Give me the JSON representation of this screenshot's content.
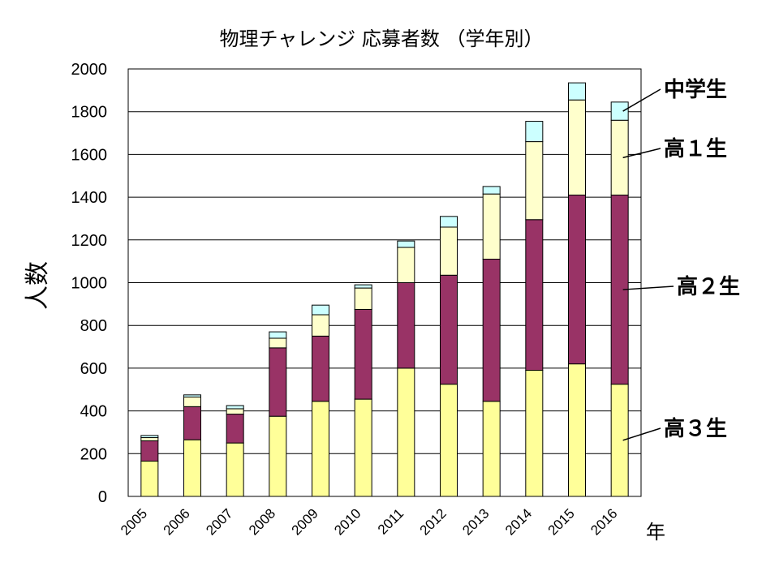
{
  "chart_data": {
    "type": "bar",
    "stacked": true,
    "title": "物理チャレンジ 応募者数 （学年別）",
    "ylabel": "人数",
    "xunit": "年",
    "ylim": [
      0,
      2000
    ],
    "yticks": [
      0,
      200,
      400,
      600,
      800,
      1000,
      1200,
      1400,
      1600,
      1800,
      2000
    ],
    "grid": true,
    "categories": [
      "2005",
      "2006",
      "2007",
      "2008",
      "2009",
      "2010",
      "2011",
      "2012",
      "2013",
      "2014",
      "2015",
      "2016"
    ],
    "series": [
      {
        "name": "高３生",
        "color": "#FFFF99",
        "values": [
          165,
          265,
          250,
          375,
          445,
          455,
          600,
          525,
          445,
          590,
          620,
          525
        ]
      },
      {
        "name": "高２生",
        "color": "#993366",
        "values": [
          95,
          155,
          135,
          320,
          305,
          420,
          400,
          510,
          665,
          705,
          790,
          885
        ]
      },
      {
        "name": "高１生",
        "color": "#FFFFCC",
        "values": [
          15,
          45,
          25,
          45,
          100,
          100,
          165,
          225,
          305,
          365,
          445,
          350
        ]
      },
      {
        "name": "中学生",
        "color": "#CCFFFF",
        "values": [
          10,
          10,
          15,
          30,
          45,
          15,
          30,
          50,
          35,
          95,
          80,
          85
        ]
      }
    ],
    "legend_placement": "right"
  }
}
